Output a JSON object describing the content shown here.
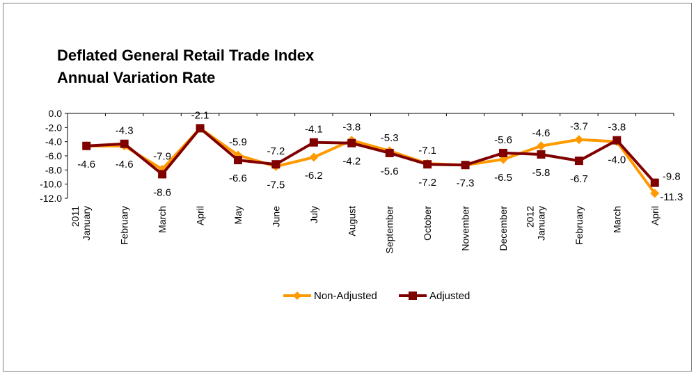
{
  "chart_data": {
    "type": "line",
    "title": "Deflated General Retail Trade Index",
    "subtitle": "Annual Variation Rate",
    "xlabel": "",
    "ylabel": "",
    "ylim": [
      -12.0,
      0.0
    ],
    "ytick_step": 2.0,
    "yticks": [
      "0.0",
      "-2.0",
      "-4.0",
      "-6.0",
      "-8.0",
      "-10.0",
      "-12.0"
    ],
    "grid": false,
    "legend_position": "bottom",
    "categories": [
      "2011 January",
      "February",
      "March",
      "April",
      "May",
      "June",
      "July",
      "August",
      "September",
      "October",
      "November",
      "December",
      "2012 January",
      "February",
      "March",
      "April"
    ],
    "category_lines": [
      [
        "2011",
        "January"
      ],
      [
        "February"
      ],
      [
        "March"
      ],
      [
        "April"
      ],
      [
        "May"
      ],
      [
        "June"
      ],
      [
        "July"
      ],
      [
        "August"
      ],
      [
        "September"
      ],
      [
        "October"
      ],
      [
        "November"
      ],
      [
        "December"
      ],
      [
        "2012",
        "January"
      ],
      [
        "February"
      ],
      [
        "March"
      ],
      [
        "April"
      ]
    ],
    "series": [
      {
        "name": "Non-Adjusted",
        "color": "#ff9900",
        "marker": "diamond",
        "values": [
          -4.6,
          -4.6,
          -7.9,
          -2.1,
          -5.9,
          -7.5,
          -6.2,
          -3.8,
          -5.3,
          -7.1,
          -7.3,
          -6.5,
          -4.6,
          -3.7,
          -4.0,
          -11.3
        ],
        "labels": [
          "-4.6",
          "-4.6",
          "-7.9",
          "-2.1",
          "-5.9",
          "-7.5",
          "-6.2",
          "-3.8",
          "-5.3",
          "-7.1",
          "-7.3",
          "-6.5",
          "-4.6",
          "-3.7",
          "-4.0",
          "-11.3"
        ]
      },
      {
        "name": "Adjusted",
        "color": "#800000",
        "marker": "square",
        "values": [
          -4.6,
          -4.3,
          -8.6,
          -2.1,
          -6.6,
          -7.2,
          -4.1,
          -4.2,
          -5.6,
          -7.2,
          -7.3,
          -5.6,
          -5.8,
          -6.7,
          -3.8,
          -9.8
        ],
        "labels": [
          "",
          "-4.3",
          "-8.6",
          "",
          "-6.6",
          "-7.2",
          "-4.1",
          "-4.2",
          "-5.6",
          "-7.2",
          "",
          "-5.6",
          "-5.8",
          "-6.7",
          "-3.8",
          "-9.8"
        ]
      }
    ]
  }
}
